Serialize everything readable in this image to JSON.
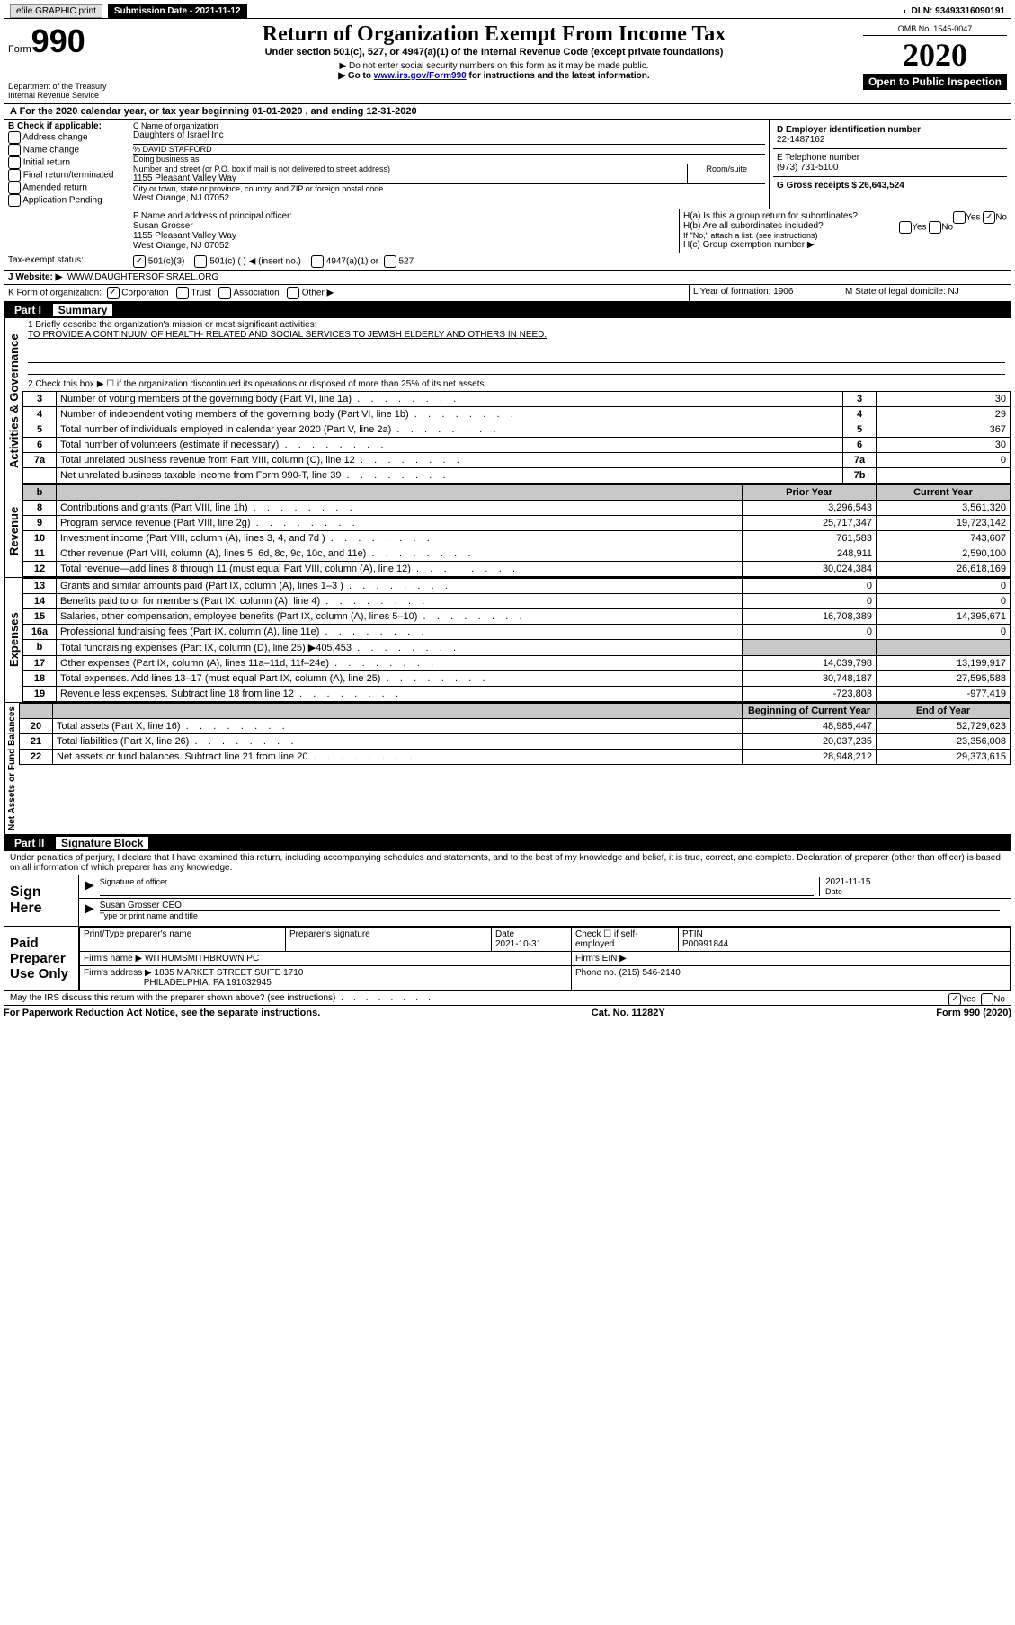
{
  "topbar": {
    "efile_label": "efile GRAPHIC print",
    "submission_label": "Submission Date - 2021-11-12",
    "dln_label": "DLN: 93493316090191"
  },
  "header": {
    "form_label": "Form",
    "form_number": "990",
    "dept1": "Department of the Treasury",
    "dept2": "Internal Revenue Service",
    "title": "Return of Organization Exempt From Income Tax",
    "subtitle": "Under section 501(c), 527, or 4947(a)(1) of the Internal Revenue Code (except private foundations)",
    "note1": "▶ Do not enter social security numbers on this form as it may be made public.",
    "note2_pre": "▶ Go to ",
    "note2_link": "www.irs.gov/Form990",
    "note2_post": " for instructions and the latest information.",
    "omb": "OMB No. 1545-0047",
    "year": "2020",
    "inspect": "Open to Public Inspection"
  },
  "periodA": "A For the 2020 calendar year, or tax year beginning 01-01-2020    , and ending 12-31-2020",
  "boxB": {
    "label": "B Check if applicable:",
    "items": [
      "Address change",
      "Name change",
      "Initial return",
      "Final return/terminated",
      "Amended return",
      "Application Pending"
    ]
  },
  "boxC": {
    "name_label": "C Name of organization",
    "name": "Daughters of Israel Inc",
    "care_of": "% DAVID STAFFORD",
    "dba_label": "Doing business as",
    "addr_label": "Number and street (or P.O. box if mail is not delivered to street address)",
    "room_label": "Room/suite",
    "addr": "1155 Pleasant Valley Way",
    "city_label": "City or town, state or province, country, and ZIP or foreign postal code",
    "city": "West Orange, NJ  07052"
  },
  "boxD": {
    "label": "D Employer identification number",
    "value": "22-1487162"
  },
  "boxE": {
    "label": "E Telephone number",
    "value": "(973) 731-5100"
  },
  "boxG": {
    "label": "G Gross receipts $ 26,643,524"
  },
  "boxF": {
    "label": "F  Name and address of principal officer:",
    "name": "Susan Grosser",
    "addr": "1155 Pleasant Valley Way",
    "city": "West Orange, NJ  07052"
  },
  "boxH": {
    "a": "H(a)  Is this a group return for subordinates?",
    "b": "H(b)  Are all subordinates included?",
    "note": "If \"No,\" attach a list. (see instructions)",
    "c": "H(c)  Group exemption number ▶",
    "yes": "Yes",
    "no": "No"
  },
  "boxI": {
    "label": "Tax-exempt status:",
    "c1": "501(c)(3)",
    "c2": "501(c) (   ) ◀ (insert no.)",
    "c3": "4947(a)(1) or",
    "c4": "527"
  },
  "boxJ": {
    "label": "J   Website: ▶",
    "value": "WWW.DAUGHTERSOFISRAEL.ORG"
  },
  "boxK": {
    "label": "K Form of organization:",
    "opts": [
      "Corporation",
      "Trust",
      "Association",
      "Other ▶"
    ]
  },
  "boxL": {
    "label": "L Year of formation: 1906"
  },
  "boxM": {
    "label": "M State of legal domicile: NJ"
  },
  "part1": {
    "label": "Part I",
    "title": "Summary"
  },
  "summary": {
    "q1": "1  Briefly describe the organization's mission or most significant activities:",
    "mission": "TO PROVIDE A CONTINUUM OF HEALTH- RELATED AND SOCIAL SERVICES TO JEWISH ELDERLY AND OTHERS IN NEED.",
    "q2": "2    Check this box ▶ ☐  if the organization discontinued its operations or disposed of more than 25% of its net assets.",
    "rows_simple": [
      {
        "n": "3",
        "t": "Number of voting members of the governing body (Part VI, line 1a)",
        "rn": "3",
        "v": "30"
      },
      {
        "n": "4",
        "t": "Number of independent voting members of the governing body (Part VI, line 1b)",
        "rn": "4",
        "v": "29"
      },
      {
        "n": "5",
        "t": "Total number of individuals employed in calendar year 2020 (Part V, line 2a)",
        "rn": "5",
        "v": "367"
      },
      {
        "n": "6",
        "t": "Total number of volunteers (estimate if necessary)",
        "rn": "6",
        "v": "30"
      },
      {
        "n": "7a",
        "t": "Total unrelated business revenue from Part VIII, column (C), line 12",
        "rn": "7a",
        "v": "0"
      },
      {
        "n": "",
        "t": "Net unrelated business taxable income from Form 990-T, line 39",
        "rn": "7b",
        "v": ""
      }
    ],
    "hdr_b": "b",
    "hdr_prior": "Prior Year",
    "hdr_curr": "Current Year",
    "rev": [
      {
        "n": "8",
        "t": "Contributions and grants (Part VIII, line 1h)",
        "p": "3,296,543",
        "c": "3,561,320"
      },
      {
        "n": "9",
        "t": "Program service revenue (Part VIII, line 2g)",
        "p": "25,717,347",
        "c": "19,723,142"
      },
      {
        "n": "10",
        "t": "Investment income (Part VIII, column (A), lines 3, 4, and 7d )",
        "p": "761,583",
        "c": "743,607"
      },
      {
        "n": "11",
        "t": "Other revenue (Part VIII, column (A), lines 5, 6d, 8c, 9c, 10c, and 11e)",
        "p": "248,911",
        "c": "2,590,100"
      },
      {
        "n": "12",
        "t": "Total revenue—add lines 8 through 11 (must equal Part VIII, column (A), line 12)",
        "p": "30,024,384",
        "c": "26,618,169"
      }
    ],
    "exp": [
      {
        "n": "13",
        "t": "Grants and similar amounts paid (Part IX, column (A), lines 1–3 )",
        "p": "0",
        "c": "0"
      },
      {
        "n": "14",
        "t": "Benefits paid to or for members (Part IX, column (A), line 4)",
        "p": "0",
        "c": "0"
      },
      {
        "n": "15",
        "t": "Salaries, other compensation, employee benefits (Part IX, column (A), lines 5–10)",
        "p": "16,708,389",
        "c": "14,395,671"
      },
      {
        "n": "16a",
        "t": "Professional fundraising fees (Part IX, column (A), line 11e)",
        "p": "0",
        "c": "0"
      },
      {
        "n": "b",
        "t": "Total fundraising expenses (Part IX, column (D), line 25) ▶405,453",
        "p": "",
        "c": "",
        "shade": true
      },
      {
        "n": "17",
        "t": "Other expenses (Part IX, column (A), lines 11a–11d, 11f–24e)",
        "p": "14,039,798",
        "c": "13,199,917"
      },
      {
        "n": "18",
        "t": "Total expenses. Add lines 13–17 (must equal Part IX, column (A), line 25)",
        "p": "30,748,187",
        "c": "27,595,588"
      },
      {
        "n": "19",
        "t": "Revenue less expenses. Subtract line 18 from line 12",
        "p": "-723,803",
        "c": "-977,419"
      }
    ],
    "hdr_beg": "Beginning of Current Year",
    "hdr_end": "End of Year",
    "net": [
      {
        "n": "20",
        "t": "Total assets (Part X, line 16)",
        "p": "48,985,447",
        "c": "52,729,623"
      },
      {
        "n": "21",
        "t": "Total liabilities (Part X, line 26)",
        "p": "20,037,235",
        "c": "23,356,008"
      },
      {
        "n": "22",
        "t": "Net assets or fund balances. Subtract line 21 from line 20",
        "p": "28,948,212",
        "c": "29,373,615"
      }
    ]
  },
  "vlabels": {
    "gov": "Activities & Governance",
    "rev": "Revenue",
    "exp": "Expenses",
    "net": "Net Assets or Fund Balances"
  },
  "part2": {
    "label": "Part II",
    "title": "Signature Block"
  },
  "perjury": "Under penalties of perjury, I declare that I have examined this return, including accompanying schedules and statements, and to the best of my knowledge and belief, it is true, correct, and complete. Declaration of preparer (other than officer) is based on all information of which preparer has any knowledge.",
  "sign": {
    "here": "Sign Here",
    "sig_label": "Signature of officer",
    "date_label": "Date",
    "date": "2021-11-15",
    "name": "Susan Grosser CEO",
    "name_label": "Type or print name and title"
  },
  "paid": {
    "title": "Paid Preparer Use Only",
    "col1": "Print/Type preparer's name",
    "col2": "Preparer's signature",
    "col3": "Date",
    "date": "2021-10-31",
    "col4": "Check ☐ if self-employed",
    "col5": "PTIN",
    "ptin": "P00991844",
    "firm_name_l": "Firm's name    ▶",
    "firm_name": "WITHUMSMITHBROWN PC",
    "firm_ein_l": "Firm's EIN ▶",
    "firm_addr_l": "Firm's address ▶",
    "firm_addr1": "1835 MARKET STREET SUITE 1710",
    "firm_addr2": "PHILADELPHIA, PA  191032945",
    "phone_l": "Phone no. (215) 546-2140"
  },
  "discuss": "May the IRS discuss this return with the preparer shown above? (see instructions)",
  "yes": "Yes",
  "no": "No",
  "footer": {
    "l": "For Paperwork Reduction Act Notice, see the separate instructions.",
    "m": "Cat. No. 11282Y",
    "r": "Form 990 (2020)"
  }
}
